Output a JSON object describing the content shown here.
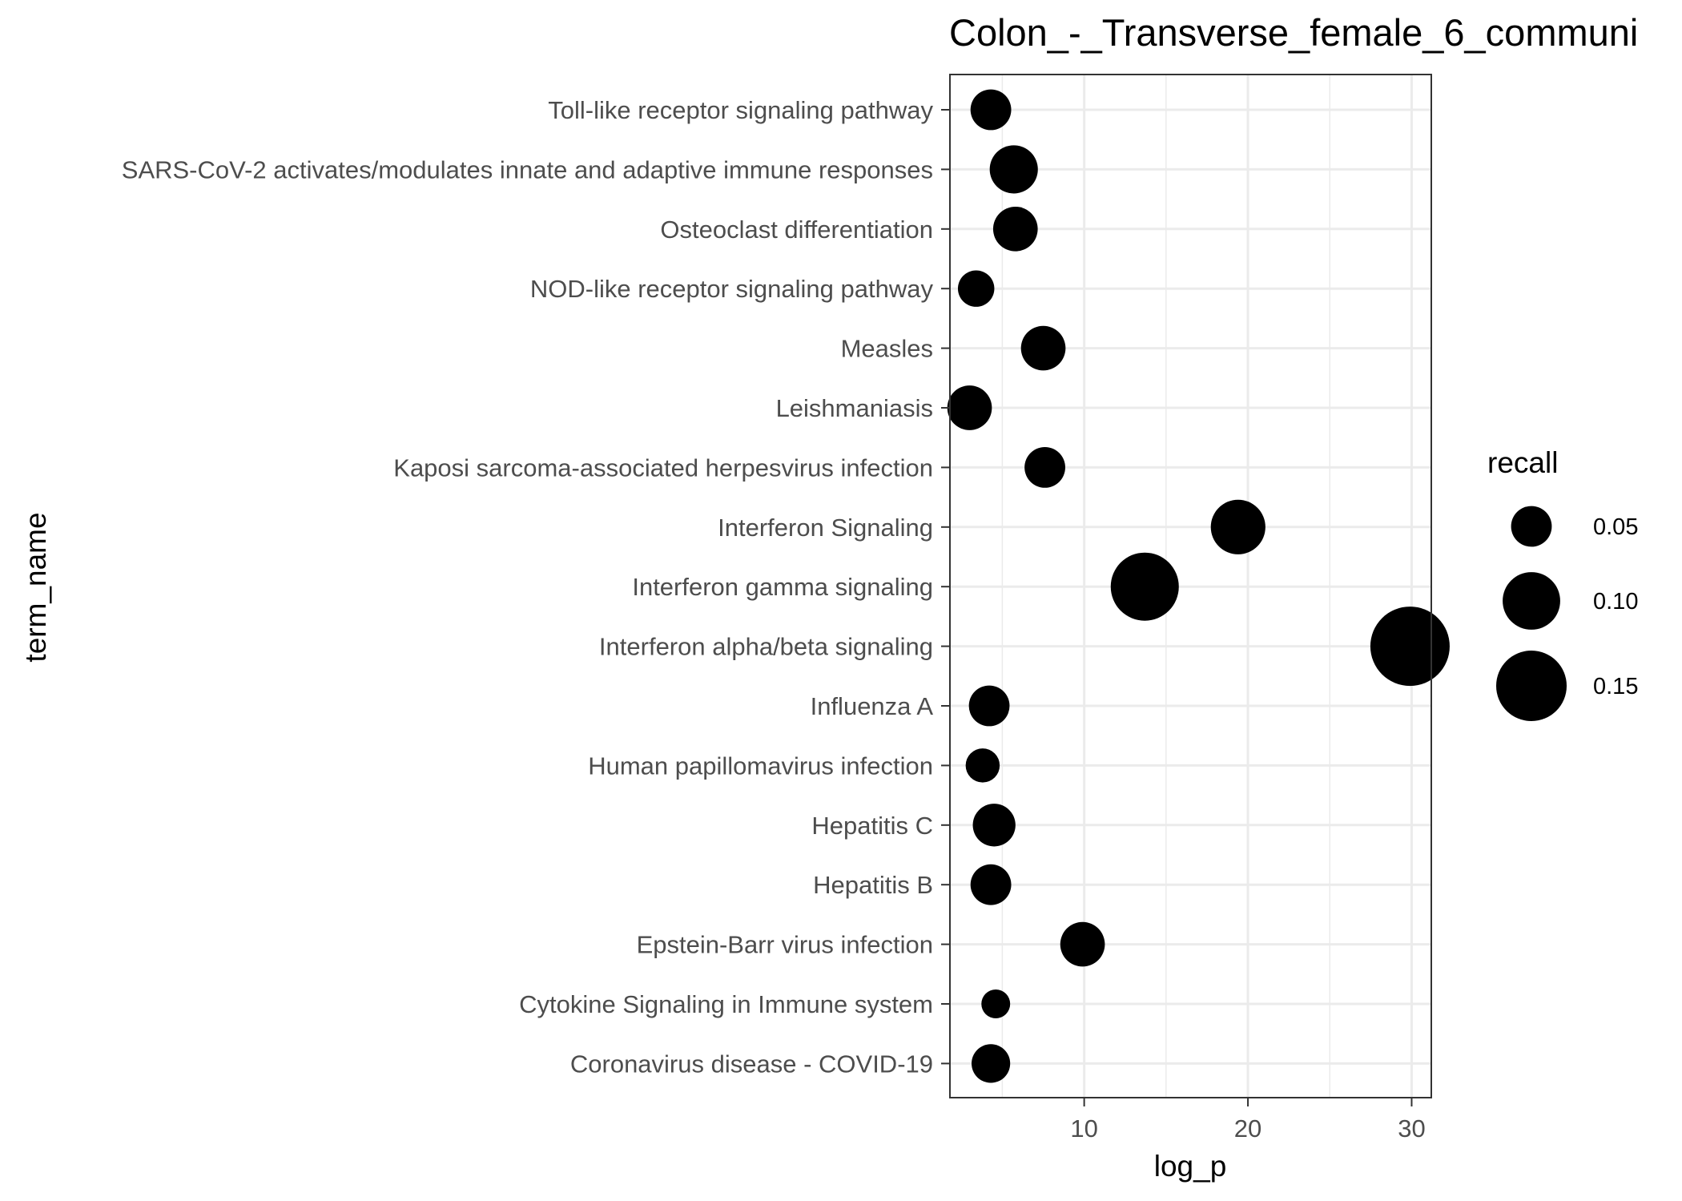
{
  "chart_data": {
    "type": "scatter",
    "title": "Colon_-_Transverse_female_6_communi",
    "xlabel": "log_p",
    "ylabel": "term_name",
    "xlim": [
      1.8,
      31.2
    ],
    "x_ticks": [
      10,
      20,
      30
    ],
    "x_minor_ticks": [
      5,
      15,
      25
    ],
    "grid": true,
    "categories": [
      "Toll-like receptor signaling pathway",
      "SARS-CoV-2 activates/modulates innate and adaptive immune responses",
      "Osteoclast differentiation",
      "NOD-like receptor signaling pathway",
      "Measles",
      "Leishmaniasis",
      "Kaposi sarcoma-associated herpesvirus infection",
      "Interferon Signaling",
      "Interferon gamma signaling",
      "Interferon alpha/beta signaling",
      "Influenza A",
      "Human papillomavirus infection",
      "Hepatitis C",
      "Hepatitis B",
      "Epstein-Barr virus infection",
      "Cytokine Signaling in Immune system",
      "Coronavirus disease - COVID-19"
    ],
    "series": [
      {
        "x": [
          4.3,
          5.7,
          5.8,
          3.4,
          7.5,
          3.0,
          7.6,
          19.4,
          13.7,
          29.9,
          4.2,
          3.8,
          4.5,
          4.3,
          9.9,
          4.6,
          4.3
        ],
        "recall": [
          0.05,
          0.07,
          0.06,
          0.04,
          0.06,
          0.06,
          0.05,
          0.09,
          0.14,
          0.19,
          0.05,
          0.035,
          0.055,
          0.05,
          0.06,
          0.025,
          0.045
        ]
      }
    ],
    "legend": {
      "title": "recall",
      "position": "right",
      "entries": [
        {
          "label": "0.05",
          "value": 0.05
        },
        {
          "label": "0.10",
          "value": 0.1
        },
        {
          "label": "0.15",
          "value": 0.15
        }
      ]
    },
    "colors": {
      "point": "#000000",
      "grid": "#ebebeb",
      "panel_border": "#333333",
      "tick_text": "#4d4d4d"
    }
  }
}
